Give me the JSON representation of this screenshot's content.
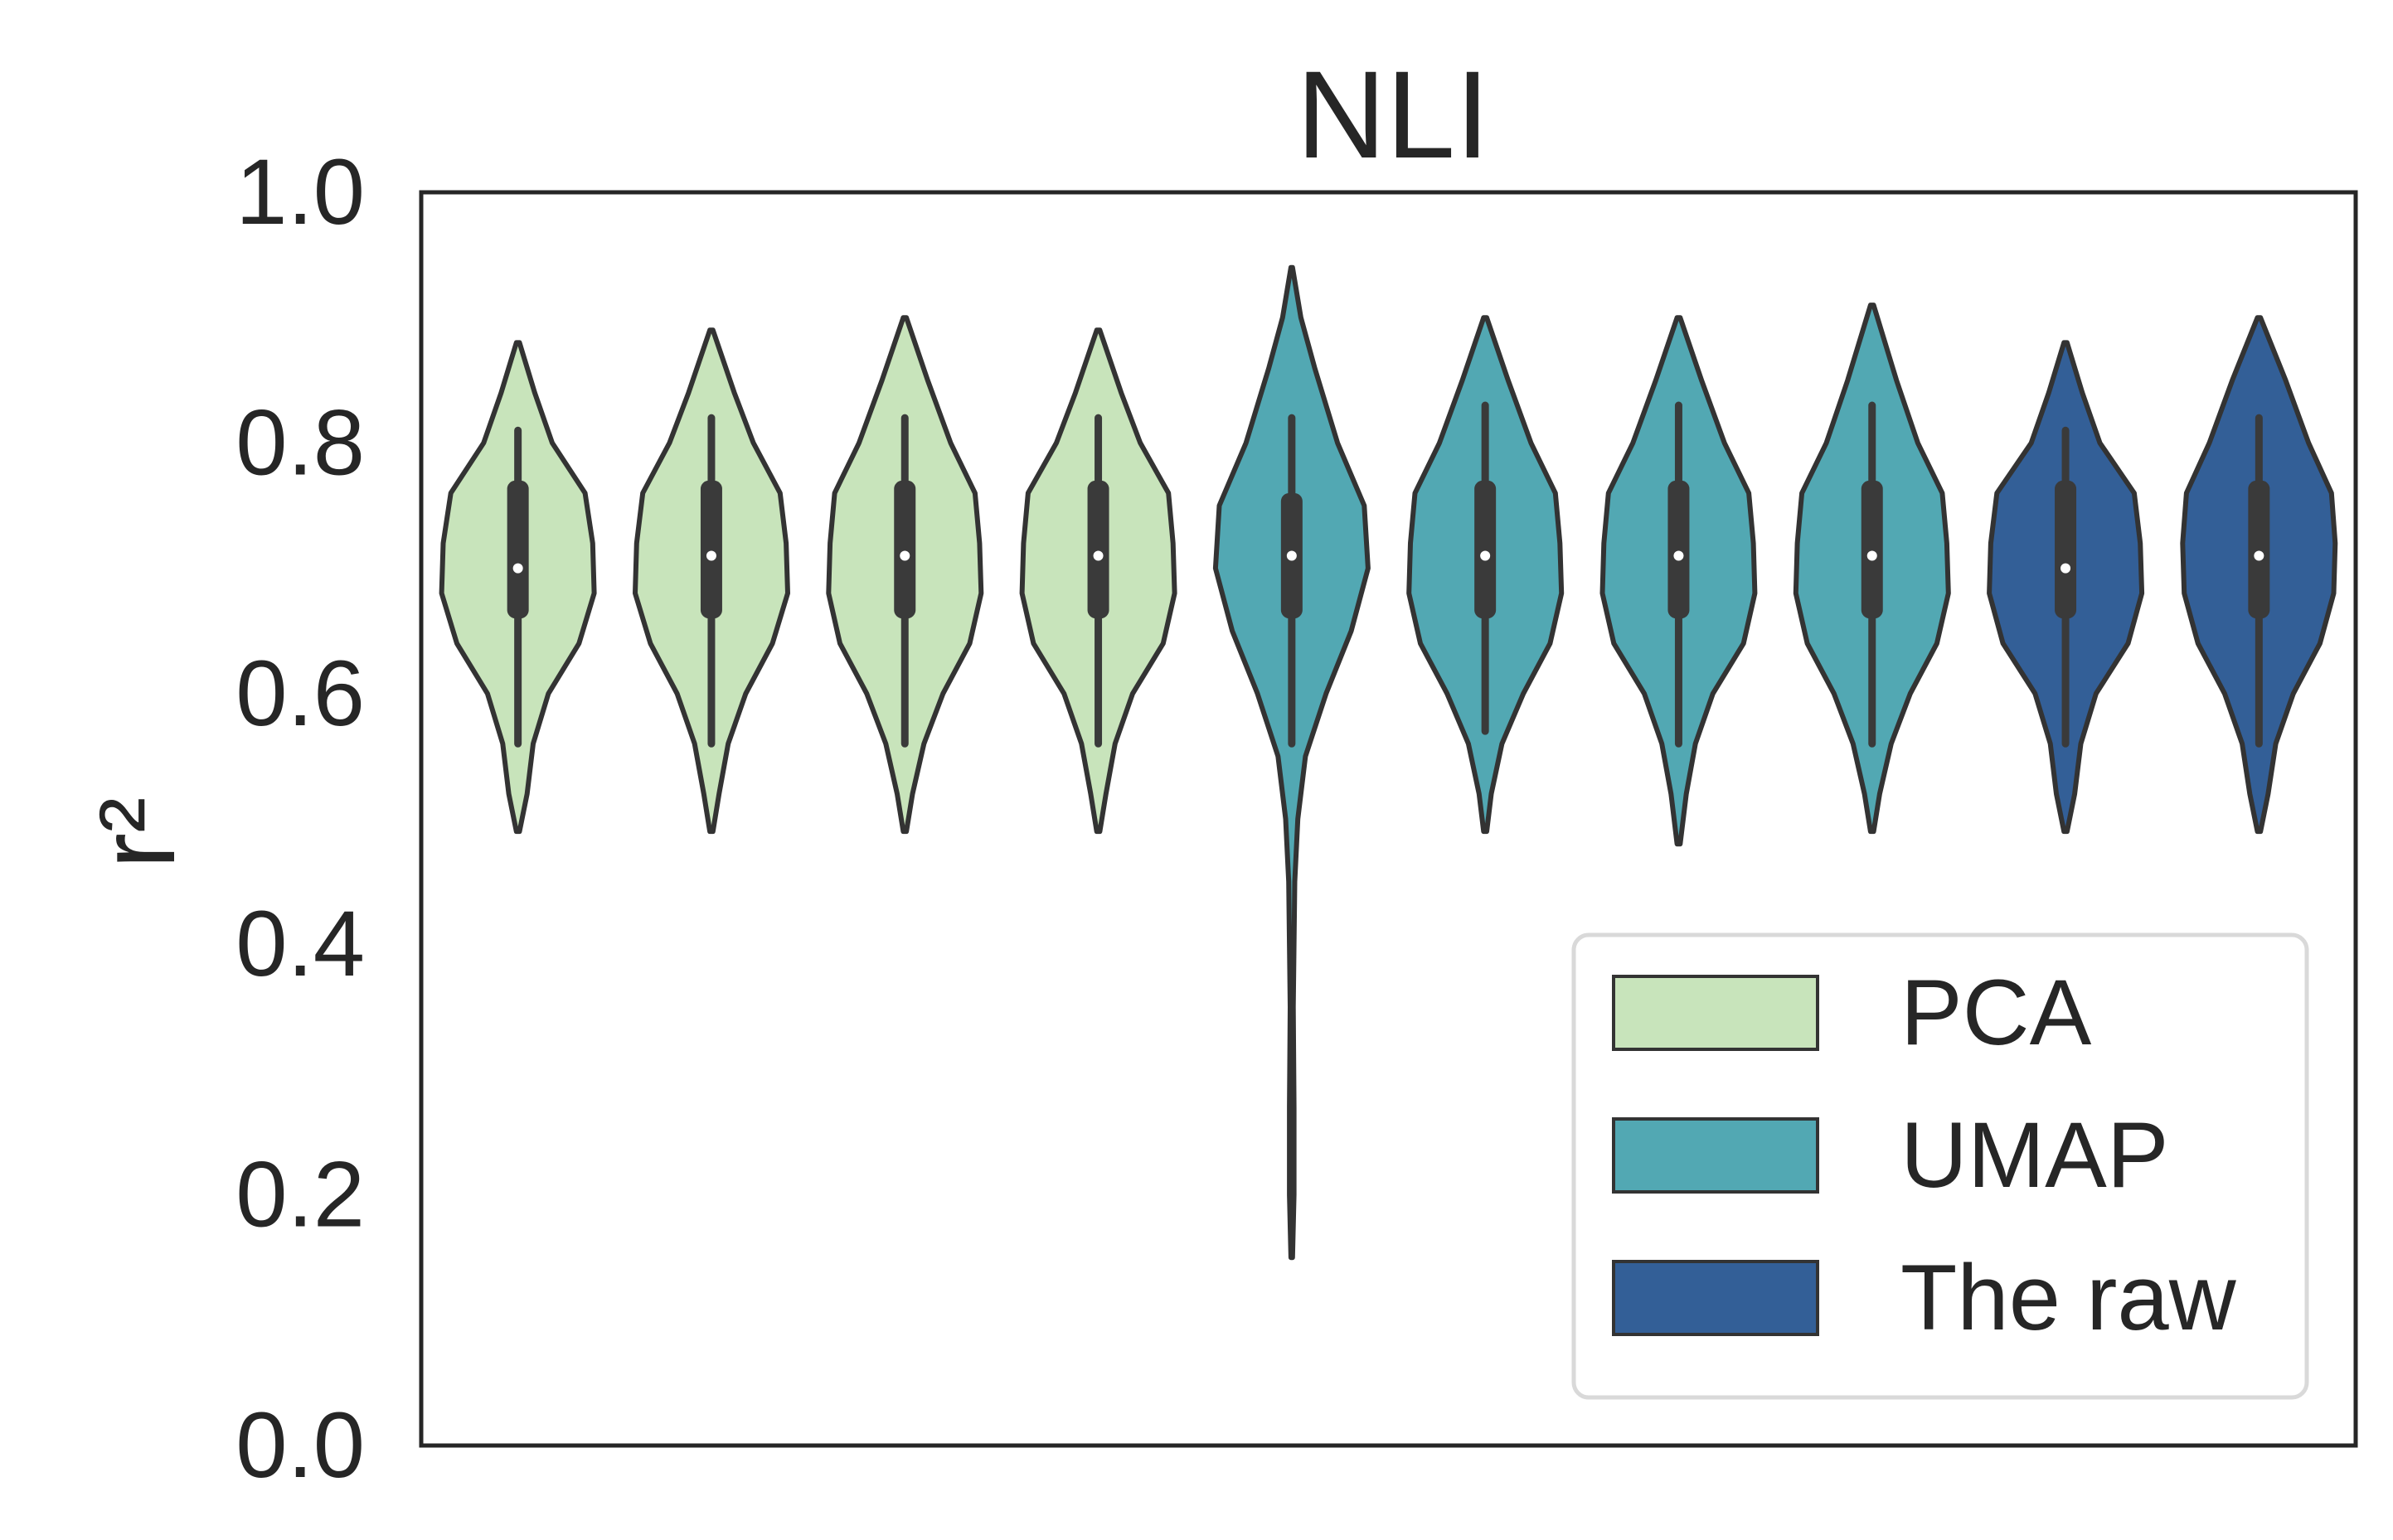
{
  "chart_data": {
    "type": "violin",
    "title": "NLI",
    "xlabel": "",
    "ylabel": "r²",
    "ylim": [
      0.0,
      1.0
    ],
    "yticks": [
      "0.0",
      "0.2",
      "0.4",
      "0.6",
      "0.8",
      "1.0"
    ],
    "grid": false,
    "legend_position": "lower-right",
    "legend": [
      {
        "name": "PCA",
        "color": "#c8e4bb"
      },
      {
        "name": "UMAP",
        "color": "#52a8b3"
      },
      {
        "name": "The raw",
        "color": "#335f97"
      }
    ],
    "outline_color": "#333333",
    "violins": [
      {
        "group": "PCA",
        "min": 0.49,
        "max": 0.88,
        "q1": 0.66,
        "median": 0.7,
        "q3": 0.77,
        "whisker_low": 0.56,
        "whisker_high": 0.81,
        "shape": [
          [
            0.49,
            0.02
          ],
          [
            0.52,
            0.12
          ],
          [
            0.56,
            0.2
          ],
          [
            0.6,
            0.4
          ],
          [
            0.64,
            0.8
          ],
          [
            0.68,
            1.0
          ],
          [
            0.72,
            0.98
          ],
          [
            0.76,
            0.88
          ],
          [
            0.8,
            0.45
          ],
          [
            0.84,
            0.22
          ],
          [
            0.88,
            0.02
          ]
        ]
      },
      {
        "group": "PCA",
        "min": 0.49,
        "max": 0.89,
        "q1": 0.66,
        "median": 0.71,
        "q3": 0.77,
        "whisker_low": 0.56,
        "whisker_high": 0.82,
        "shape": [
          [
            0.49,
            0.02
          ],
          [
            0.52,
            0.1
          ],
          [
            0.56,
            0.22
          ],
          [
            0.6,
            0.45
          ],
          [
            0.64,
            0.8
          ],
          [
            0.68,
            1.0
          ],
          [
            0.72,
            0.98
          ],
          [
            0.76,
            0.9
          ],
          [
            0.8,
            0.55
          ],
          [
            0.84,
            0.3
          ],
          [
            0.89,
            0.02
          ]
        ]
      },
      {
        "group": "PCA",
        "min": 0.49,
        "max": 0.9,
        "q1": 0.66,
        "median": 0.71,
        "q3": 0.77,
        "whisker_low": 0.56,
        "whisker_high": 0.82,
        "shape": [
          [
            0.49,
            0.02
          ],
          [
            0.52,
            0.1
          ],
          [
            0.56,
            0.25
          ],
          [
            0.6,
            0.5
          ],
          [
            0.64,
            0.85
          ],
          [
            0.68,
            1.0
          ],
          [
            0.72,
            0.98
          ],
          [
            0.76,
            0.92
          ],
          [
            0.8,
            0.6
          ],
          [
            0.85,
            0.3
          ],
          [
            0.9,
            0.02
          ]
        ]
      },
      {
        "group": "PCA",
        "min": 0.49,
        "max": 0.89,
        "q1": 0.66,
        "median": 0.71,
        "q3": 0.77,
        "whisker_low": 0.56,
        "whisker_high": 0.82,
        "shape": [
          [
            0.49,
            0.02
          ],
          [
            0.52,
            0.1
          ],
          [
            0.56,
            0.22
          ],
          [
            0.6,
            0.45
          ],
          [
            0.64,
            0.85
          ],
          [
            0.68,
            1.0
          ],
          [
            0.72,
            0.98
          ],
          [
            0.76,
            0.92
          ],
          [
            0.8,
            0.55
          ],
          [
            0.84,
            0.3
          ],
          [
            0.89,
            0.02
          ]
        ]
      },
      {
        "group": "UMAP",
        "min": 0.15,
        "max": 0.94,
        "q1": 0.66,
        "median": 0.71,
        "q3": 0.76,
        "whisker_low": 0.56,
        "whisker_high": 0.82,
        "shape": [
          [
            0.15,
            0.01
          ],
          [
            0.2,
            0.03
          ],
          [
            0.27,
            0.03
          ],
          [
            0.35,
            0.02
          ],
          [
            0.45,
            0.04
          ],
          [
            0.5,
            0.08
          ],
          [
            0.55,
            0.18
          ],
          [
            0.6,
            0.45
          ],
          [
            0.65,
            0.78
          ],
          [
            0.7,
            1.0
          ],
          [
            0.75,
            0.95
          ],
          [
            0.8,
            0.6
          ],
          [
            0.86,
            0.3
          ],
          [
            0.9,
            0.12
          ],
          [
            0.94,
            0.01
          ]
        ]
      },
      {
        "group": "UMAP",
        "min": 0.49,
        "max": 0.9,
        "q1": 0.66,
        "median": 0.71,
        "q3": 0.77,
        "whisker_low": 0.57,
        "whisker_high": 0.83,
        "shape": [
          [
            0.49,
            0.02
          ],
          [
            0.52,
            0.08
          ],
          [
            0.56,
            0.22
          ],
          [
            0.6,
            0.5
          ],
          [
            0.64,
            0.85
          ],
          [
            0.68,
            1.0
          ],
          [
            0.72,
            0.98
          ],
          [
            0.76,
            0.92
          ],
          [
            0.8,
            0.6
          ],
          [
            0.85,
            0.3
          ],
          [
            0.9,
            0.02
          ]
        ]
      },
      {
        "group": "UMAP",
        "min": 0.48,
        "max": 0.9,
        "q1": 0.66,
        "median": 0.71,
        "q3": 0.77,
        "whisker_low": 0.56,
        "whisker_high": 0.83,
        "shape": [
          [
            0.48,
            0.02
          ],
          [
            0.52,
            0.1
          ],
          [
            0.56,
            0.22
          ],
          [
            0.6,
            0.45
          ],
          [
            0.64,
            0.85
          ],
          [
            0.68,
            1.0
          ],
          [
            0.72,
            0.98
          ],
          [
            0.76,
            0.92
          ],
          [
            0.8,
            0.6
          ],
          [
            0.85,
            0.3
          ],
          [
            0.9,
            0.02
          ]
        ]
      },
      {
        "group": "UMAP",
        "min": 0.49,
        "max": 0.91,
        "q1": 0.66,
        "median": 0.71,
        "q3": 0.77,
        "whisker_low": 0.56,
        "whisker_high": 0.83,
        "shape": [
          [
            0.49,
            0.02
          ],
          [
            0.52,
            0.1
          ],
          [
            0.56,
            0.25
          ],
          [
            0.6,
            0.5
          ],
          [
            0.64,
            0.85
          ],
          [
            0.68,
            1.0
          ],
          [
            0.72,
            0.98
          ],
          [
            0.76,
            0.92
          ],
          [
            0.8,
            0.6
          ],
          [
            0.85,
            0.32
          ],
          [
            0.91,
            0.02
          ]
        ]
      },
      {
        "group": "The raw",
        "min": 0.49,
        "max": 0.88,
        "q1": 0.66,
        "median": 0.7,
        "q3": 0.77,
        "whisker_low": 0.56,
        "whisker_high": 0.81,
        "shape": [
          [
            0.49,
            0.02
          ],
          [
            0.52,
            0.12
          ],
          [
            0.56,
            0.2
          ],
          [
            0.6,
            0.4
          ],
          [
            0.64,
            0.82
          ],
          [
            0.68,
            1.0
          ],
          [
            0.72,
            0.98
          ],
          [
            0.76,
            0.9
          ],
          [
            0.8,
            0.45
          ],
          [
            0.84,
            0.22
          ],
          [
            0.88,
            0.02
          ]
        ]
      },
      {
        "group": "The raw",
        "min": 0.49,
        "max": 0.9,
        "q1": 0.66,
        "median": 0.71,
        "q3": 0.77,
        "whisker_low": 0.56,
        "whisker_high": 0.82,
        "shape": [
          [
            0.49,
            0.02
          ],
          [
            0.52,
            0.12
          ],
          [
            0.56,
            0.22
          ],
          [
            0.6,
            0.45
          ],
          [
            0.64,
            0.8
          ],
          [
            0.68,
            0.98
          ],
          [
            0.72,
            1.0
          ],
          [
            0.76,
            0.95
          ],
          [
            0.8,
            0.65
          ],
          [
            0.85,
            0.35
          ],
          [
            0.9,
            0.02
          ]
        ]
      }
    ]
  }
}
